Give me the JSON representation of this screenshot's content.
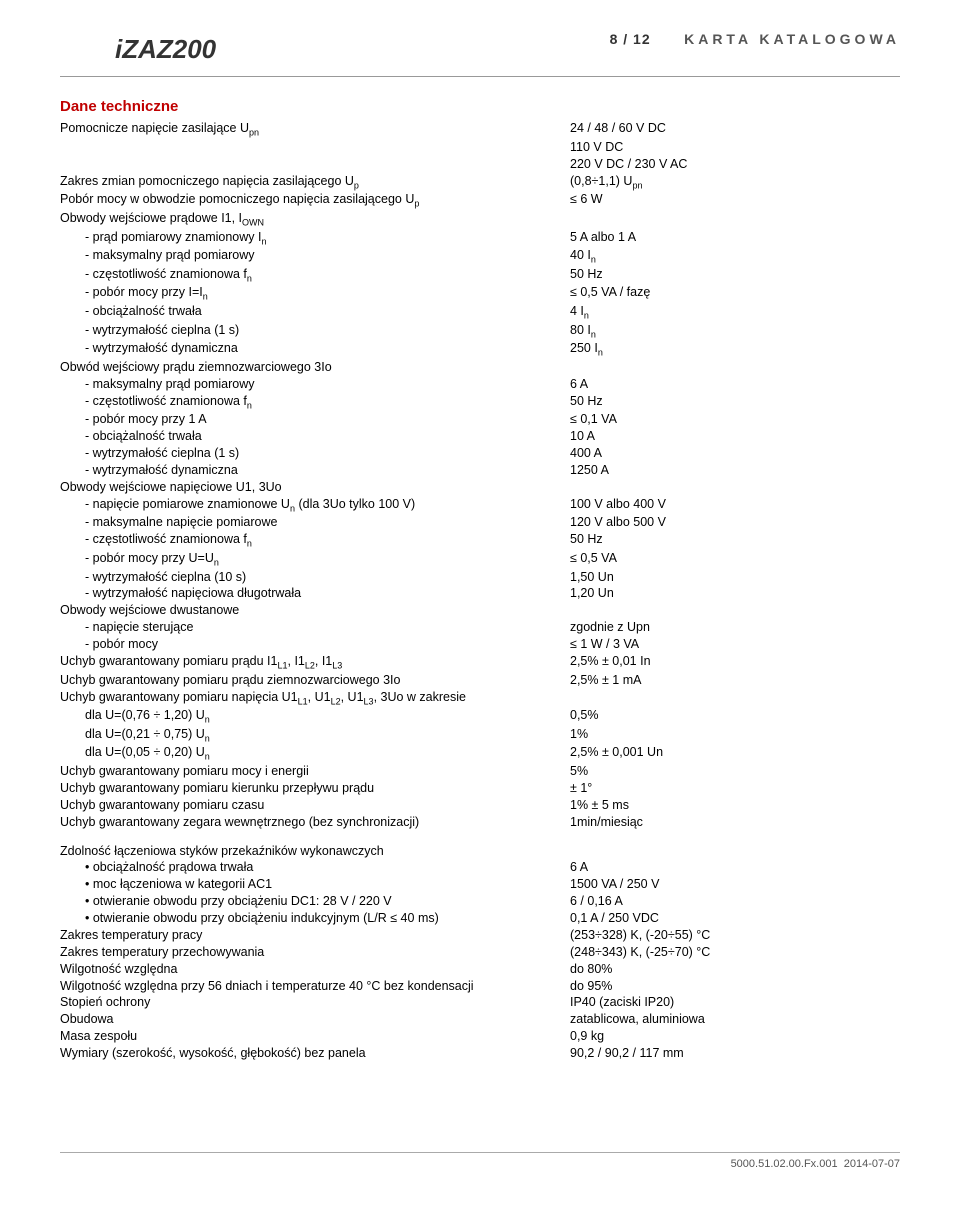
{
  "header": {
    "product": "iZAZ200",
    "page": "8 / 12",
    "katalog": "KARTA KATALOGOWA"
  },
  "section_title": "Dane techniczne",
  "spec": {
    "upn_label": "Pomocnicze napięcie zasilające U",
    "upn_sub": "pn",
    "upn_val1": "24 / 48 / 60 V DC",
    "upn_val2": "110 V DC",
    "upn_val3": "220 V DC / 230 V AC",
    "zakres_label": "Zakres zmian pomocniczego napięcia zasilającego U",
    "zakres_sub": "p",
    "zakres_val": "(0,8÷1,1) U",
    "zakres_val_sub": "pn",
    "pobor_label": "Pobór mocy w obwodzie pomocniczego napięcia zasilającego U",
    "pobor_sub": "p",
    "pobor_val": "≤ 6 W",
    "obw_i_label": "Obwody wejściowe prądowe I1, I",
    "obw_i_sub": "OWN",
    "obw_i_items": {
      "a": {
        "l": "- prąd pomiarowy znamionowy I",
        "lsub": "n",
        "r": "5 A albo 1 A"
      },
      "b": {
        "l": "- maksymalny prąd pomiarowy",
        "r": "40 I",
        "rsub": "n"
      },
      "c": {
        "l": "- częstotliwość znamionowa f",
        "lsub": "n",
        "r": "50 Hz"
      },
      "d": {
        "l": "- pobór mocy przy I=I",
        "lsub": "n",
        "r": "≤ 0,5 VA / fazę"
      },
      "e": {
        "l": "- obciążalność trwała",
        "r": "4 I",
        "rsub": "n"
      },
      "f": {
        "l": "- wytrzymałość cieplna (1 s)",
        "r": "80 I",
        "rsub": "n"
      },
      "g": {
        "l": "- wytrzymałość dynamiczna",
        "r": "250 I",
        "rsub": "n"
      }
    },
    "obw3io_label": "Obwód wejściowy prądu ziemnozwarciowego 3Io",
    "obw3io_items": {
      "a": {
        "l": "- maksymalny prąd pomiarowy",
        "r": "6 A"
      },
      "b": {
        "l": "- częstotliwość znamionowa f",
        "lsub": "n",
        "r": "50 Hz"
      },
      "c": {
        "l": "- pobór mocy przy 1 A",
        "r": "≤ 0,1 VA"
      },
      "d": {
        "l": "- obciążalność trwała",
        "r": "10 A"
      },
      "e": {
        "l": "- wytrzymałość cieplna (1 s)",
        "r": "400 A"
      },
      "f": {
        "l": "- wytrzymałość dynamiczna",
        "r": "1250 A"
      }
    },
    "obwu_label": "Obwody wejściowe napięciowe U1, 3Uo",
    "obwu_items": {
      "a": {
        "l": "- napięcie pomiarowe znamionowe U",
        "lsub": "n",
        "ltail": " (dla 3Uo tylko 100 V)",
        "r": "100 V albo 400 V"
      },
      "b": {
        "l": "- maksymalne napięcie pomiarowe",
        "r": "120 V albo 500 V"
      },
      "c": {
        "l": "- częstotliwość znamionowa f",
        "lsub": "n",
        "r": "50 Hz"
      },
      "d": {
        "l": "- pobór mocy przy U=U",
        "lsub": "n",
        "r": "≤ 0,5 VA"
      },
      "e": {
        "l": "- wytrzymałość cieplna (10 s)",
        "r": "1,50 Un"
      },
      "f": {
        "l": "- wytrzymałość napięciowa długotrwała",
        "r": "1,20 Un"
      }
    },
    "obwd_label": "Obwody wejściowe dwustanowe",
    "obwd_items": {
      "a": {
        "l": "- napięcie sterujące",
        "r": "zgodnie z Upn"
      },
      "b": {
        "l": "- pobór mocy",
        "r": "≤ 1 W / 3 VA"
      }
    },
    "uchyb1_l": "Uchyb gwarantowany pomiaru prądu I1",
    "uchyb1_l_tail": ", I1",
    "uchyb1_r": "2,5% ± 0,01 In",
    "uchyb2_l": "Uchyb gwarantowany pomiaru prądu ziemnozwarciowego 3Io",
    "uchyb2_r": "2,5% ± 1 mA",
    "uchyb3_l": "Uchyb gwarantowany pomiaru napięcia U1",
    "uchyb3_l_tail": ", 3Uo  w zakresie",
    "uchyb3a_l": "dla U=(0,76 ÷ 1,20) U",
    "uchyb3a_r": "0,5%",
    "uchyb3b_l": "dla U=(0,21 ÷ 0,75) U",
    "uchyb3b_r": "1%",
    "uchyb3c_l": "dla U=(0,05 ÷ 0,20) U",
    "uchyb3c_r": "2,5% ± 0,001 Un",
    "uchyb4_l": "Uchyb gwarantowany pomiaru mocy i energii",
    "uchyb4_r": "5%",
    "uchyb5_l": "Uchyb gwarantowany pomiaru kierunku przepływu prądu",
    "uchyb5_r": "± 1°",
    "uchyb6_l": "Uchyb gwarantowany pomiaru czasu",
    "uchyb6_r": "1% ± 5 ms",
    "uchyb7_l": "Uchyb gwarantowany zegara wewnętrznego (bez synchronizacji)",
    "uchyb7_r": "1min/miesiąc",
    "zdol_label": "Zdolność łączeniowa styków przekaźników wykonawczych",
    "zdol": {
      "a": {
        "l": "obciążalność prądowa trwała",
        "r": "6 A"
      },
      "b": {
        "l": "moc łączeniowa w kategorii AC1",
        "r": "1500 VA / 250 V"
      },
      "c": {
        "l": "otwieranie obwodu przy obciążeniu DC1: 28 V / 220 V",
        "r": "6 / 0,16 A"
      },
      "d": {
        "l": "otwieranie obwodu przy obciążeniu indukcyjnym (L/R ≤ 40 ms)",
        "r": "0,1 A / 250 VDC"
      }
    },
    "temp_pracy_l": "Zakres temperatury pracy",
    "temp_pracy_r": "(253÷328) K, (-20÷55) °C",
    "temp_przech_l": "Zakres temperatury przechowywania",
    "temp_przech_r": "(248÷343) K, (-25÷70) °C",
    "wilg1_l": "Wilgotność względna",
    "wilg1_r": "do 80%",
    "wilg2_l": "Wilgotność względna przy 56 dniach i temperaturze 40 °C bez kondensacji",
    "wilg2_r": "do 95%",
    "stop_l": "Stopień ochrony",
    "stop_r": "IP40 (zaciski IP20)",
    "obud_l": "Obudowa",
    "obud_r": "zatablicowa, aluminiowa",
    "masa_l": "Masa zespołu",
    "masa_r": "0,9 kg",
    "wym_l": "Wymiary (szerokość, wysokość, głębokość) bez panela",
    "wym_r": "90,2 / 90,2 / 117 mm"
  },
  "footer": {
    "doc": "5000.51.02.00.Fx.001",
    "date": "2014-07-07"
  }
}
